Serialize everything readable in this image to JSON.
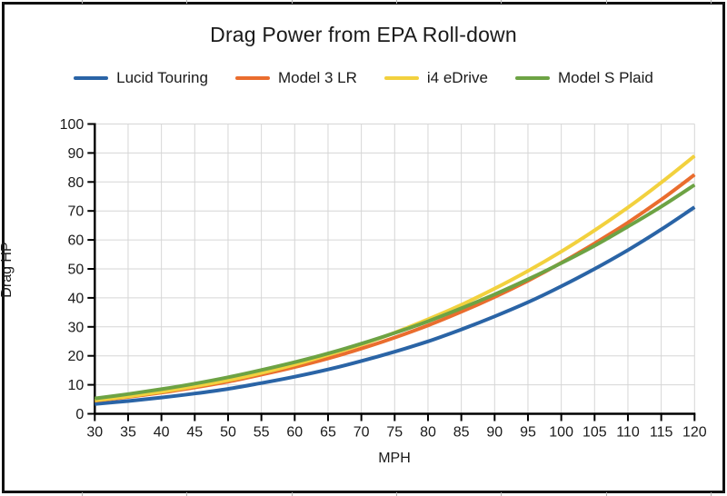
{
  "title": "Drag Power from EPA Roll-down",
  "chart_data": {
    "type": "line",
    "title": "Drag Power from EPA Roll-down",
    "xlabel": "MPH",
    "ylabel": "Drag HP",
    "xlim": [
      30,
      120
    ],
    "ylim": [
      0,
      100
    ],
    "x_tick_step": 5,
    "y_tick_step": 10,
    "grid": true,
    "legend_position": "top",
    "x": [
      30,
      35,
      40,
      45,
      50,
      55,
      60,
      65,
      70,
      75,
      80,
      85,
      90,
      95,
      100,
      105,
      110,
      115,
      120
    ],
    "series": [
      {
        "name": "Lucid Touring",
        "color": "#2a64a6",
        "values": [
          3.4,
          4.4,
          5.6,
          7.0,
          8.6,
          10.6,
          12.8,
          15.3,
          18.2,
          21.4,
          25.0,
          29.1,
          33.6,
          38.5,
          44.0,
          50.0,
          56.5,
          63.6,
          71.3
        ]
      },
      {
        "name": "Model 3 LR",
        "color": "#ea6d2e",
        "values": [
          4.5,
          5.8,
          7.3,
          9.1,
          11.1,
          13.5,
          16.1,
          19.1,
          22.5,
          26.3,
          30.5,
          35.2,
          40.3,
          45.9,
          52.1,
          58.8,
          66.0,
          73.9,
          82.5
        ]
      },
      {
        "name": "i4 eDrive",
        "color": "#f2d13e",
        "values": [
          4.6,
          6.0,
          7.6,
          9.5,
          11.6,
          14.1,
          17.0,
          20.3,
          23.9,
          28.0,
          32.6,
          37.6,
          43.2,
          49.3,
          56.0,
          63.3,
          71.2,
          79.8,
          89.0
        ]
      },
      {
        "name": "Model S Plaid",
        "color": "#6da344",
        "values": [
          5.3,
          6.8,
          8.5,
          10.4,
          12.6,
          15.1,
          17.8,
          20.8,
          24.2,
          27.9,
          31.9,
          36.4,
          41.2,
          46.4,
          52.0,
          58.0,
          64.6,
          71.5,
          79.0
        ]
      }
    ]
  },
  "colors": {
    "grid": "#d6d6d6",
    "axis": "#000000",
    "tick_text": "#1a1a1a",
    "background": "#ffffff",
    "frame_border": "#111111"
  }
}
